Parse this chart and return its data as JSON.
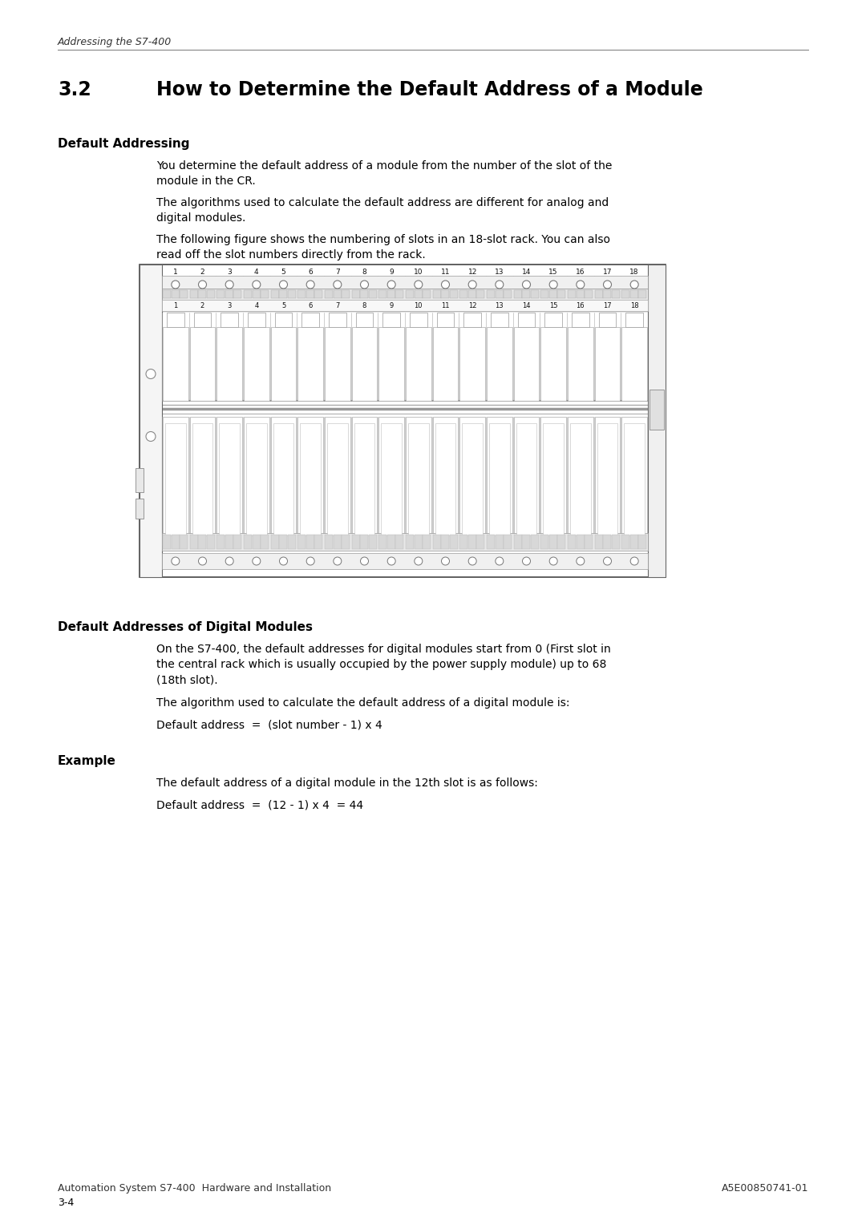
{
  "header_italic": "Addressing the S7-400",
  "section_number": "3.2",
  "section_title": "How to Determine the Default Address of a Module",
  "subsection1_title": "Default Addressing",
  "para1_l1": "You determine the default address of a module from the number of the slot of the",
  "para1_l2": "module in the CR.",
  "para2_l1": "The algorithms used to calculate the default address are different for analog and",
  "para2_l2": "digital modules.",
  "para3_l1": "The following figure shows the numbering of slots in an 18-slot rack. You can also",
  "para3_l2": "read off the slot numbers directly from the rack.",
  "slot_numbers": [
    "1",
    "2",
    "3",
    "4",
    "5",
    "6",
    "7",
    "8",
    "9",
    "10",
    "11",
    "12",
    "13",
    "14",
    "15",
    "16",
    "17",
    "18"
  ],
  "subsection2_title": "Default Addresses of Digital Modules",
  "para4_l1": "On the S7-400, the default addresses for digital modules start from 0 (First slot in",
  "para4_l2": "the central rack which is usually occupied by the power supply module) up to 68",
  "para4_l3": "(18th slot).",
  "para5": "The algorithm used to calculate the default address of a digital module is:",
  "formula1": "Default address  =  (slot number - 1) x 4",
  "subsection3_title": "Example",
  "para6": "The default address of a digital module in the 12th slot is as follows:",
  "formula2": "Default address  =  (12 - 1) x 4  = 44",
  "footer_left": "3-4",
  "footer_center": "Automation System S7-400  Hardware and Installation",
  "footer_right": "A5E00850741-01",
  "bg_color": "#ffffff"
}
